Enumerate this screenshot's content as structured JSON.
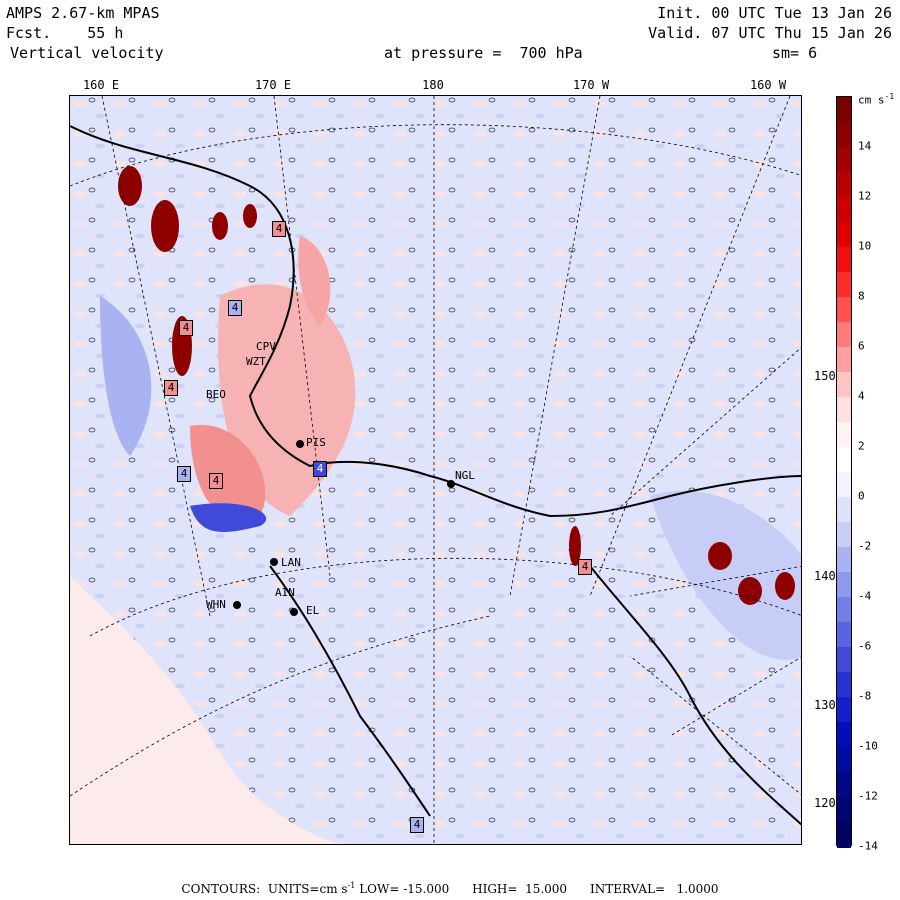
{
  "header": {
    "model": "AMPS 2.67-km MPAS",
    "forecast": "Fcst.    55 h",
    "field": "Vertical velocity",
    "init": "Init. 00 UTC Tue 13 Jan 26",
    "valid": "Valid. 07 UTC Thu 15 Jan 26",
    "pressure": "at pressure =  700 hPa",
    "smoothing": "sm= 6"
  },
  "longitude_labels": [
    "160 E",
    "170 E",
    "180",
    "170 W",
    "160 W"
  ],
  "latitude_labels": [
    "150 W",
    "140 W",
    "130 W",
    "120 W"
  ],
  "colorbar": {
    "unit": "cm s",
    "unit_exp": "-1",
    "ticks": [
      "14",
      "12",
      "10",
      "8",
      "6",
      "4",
      "2",
      "0",
      "-2",
      "-4",
      "-6",
      "-8",
      "-10",
      "-12",
      "-14"
    ],
    "colors": [
      "#7a0000",
      "#8e0000",
      "#a30000",
      "#b80000",
      "#cc0000",
      "#e00000",
      "#f21010",
      "#ff2a2a",
      "#ff5050",
      "#ff7a7a",
      "#ffa0a0",
      "#ffc4c4",
      "#ffe0e0",
      "#fff2f2",
      "#ffffff",
      "#f2f3ff",
      "#dde1fb",
      "#c7cdf7",
      "#aab3f2",
      "#8e98ec",
      "#737ee6",
      "#5964e0",
      "#3f4ad9",
      "#2633d3",
      "#1020cc",
      "#0010b8",
      "#000ca0",
      "#000888",
      "#000670",
      "#000460"
    ]
  },
  "stations": [
    {
      "code": "CPV"
    },
    {
      "code": "WZT"
    },
    {
      "code": "BEO"
    },
    {
      "code": "PIS"
    },
    {
      "code": "NGL"
    },
    {
      "code": "LAN"
    },
    {
      "code": "WHN"
    },
    {
      "code": "AIN"
    },
    {
      "code": "EL"
    }
  ],
  "hilo_markers": [
    "4",
    "4",
    "4",
    "4",
    "4",
    "4",
    "4",
    "4",
    "4"
  ],
  "footer": {
    "contours_label": "CONTOURS:",
    "units_label": "UNITS=cm s",
    "units_exp": "-1",
    "low": "LOW= -15.000",
    "high": "HIGH=  15.000",
    "interval": "INTERVAL=   1.0000"
  }
}
